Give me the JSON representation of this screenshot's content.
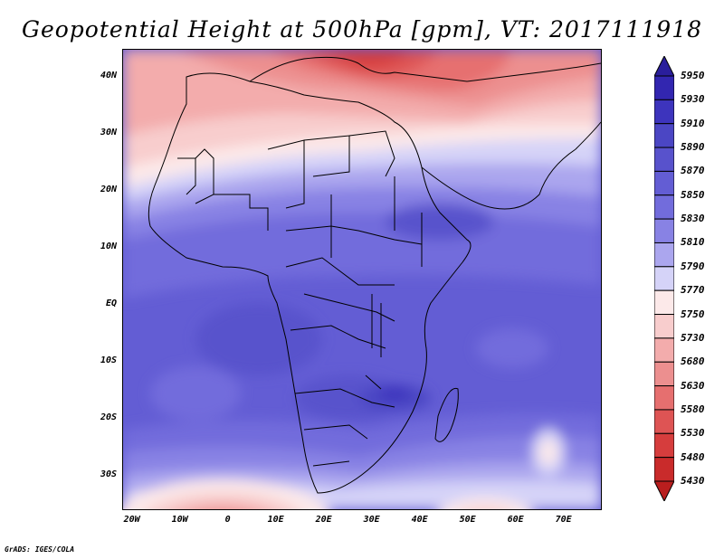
{
  "title": "Geopotential Height at 500hPa [gpm], VT: 2017111918",
  "credit": "GrADS: IGES/COLA",
  "map": {
    "lon_range": [
      -22,
      78
    ],
    "lat_range": [
      -36,
      45
    ],
    "lat_labels": [
      {
        "lat": 40,
        "text": "40N"
      },
      {
        "lat": 30,
        "text": "30N"
      },
      {
        "lat": 20,
        "text": "20N"
      },
      {
        "lat": 10,
        "text": "10N"
      },
      {
        "lat": 0,
        "text": "EQ"
      },
      {
        "lat": -10,
        "text": "10S"
      },
      {
        "lat": -20,
        "text": "20S"
      },
      {
        "lat": -30,
        "text": "30S"
      }
    ],
    "lon_labels": [
      {
        "lon": -20,
        "text": "20W"
      },
      {
        "lon": -10,
        "text": "10W"
      },
      {
        "lon": 0,
        "text": "0"
      },
      {
        "lon": 10,
        "text": "10E"
      },
      {
        "lon": 20,
        "text": "20E"
      },
      {
        "lon": 30,
        "text": "30E"
      },
      {
        "lon": 40,
        "text": "40E"
      },
      {
        "lon": 50,
        "text": "50E"
      },
      {
        "lon": 60,
        "text": "60E"
      },
      {
        "lon": 70,
        "text": "70E"
      }
    ]
  },
  "colorbar": {
    "levels": [
      "5950",
      "5930",
      "5910",
      "5890",
      "5870",
      "5850",
      "5830",
      "5810",
      "5790",
      "5770",
      "5750",
      "5730",
      "5680",
      "5630",
      "5580",
      "5530",
      "5480",
      "5430"
    ],
    "colors": [
      "#2a1e9c",
      "#3226b0",
      "#3d34bd",
      "#4b46c4",
      "#5852cc",
      "#635dd4",
      "#726cdc",
      "#8882e4",
      "#aba6ee",
      "#d5d3f8",
      "#fce9e9",
      "#f8cdcd",
      "#f3acac",
      "#ec8f8f",
      "#e66f6f",
      "#de5454",
      "#d63d3d",
      "#c92b2b",
      "#b91e1e"
    ]
  }
}
